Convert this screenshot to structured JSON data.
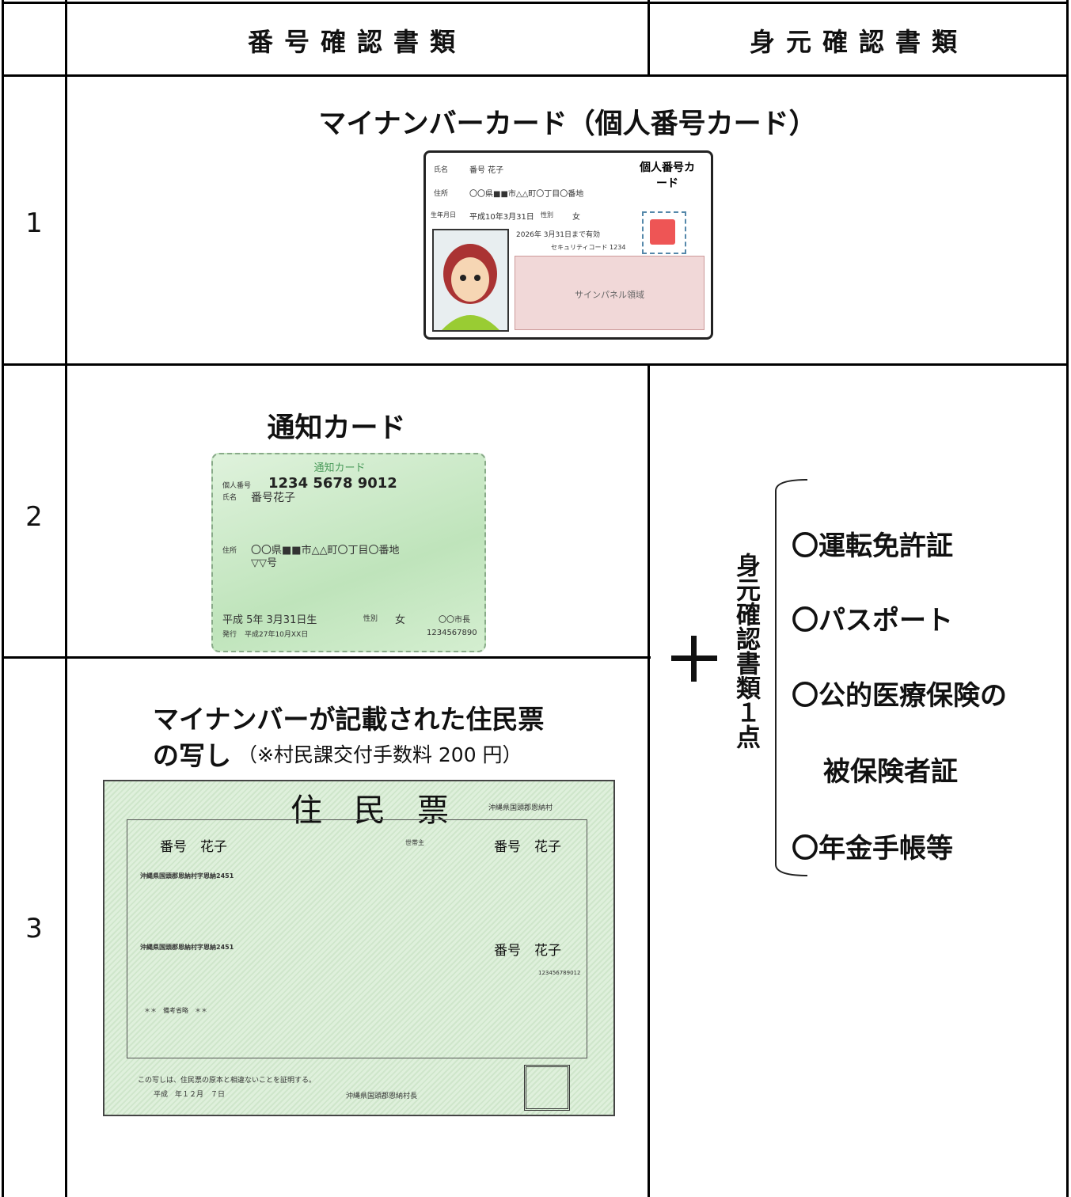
{
  "header": {
    "number_docs": "番号確認書類",
    "identity_docs": "身元確認書類"
  },
  "rows": [
    {
      "no": "1",
      "title": "マイナンバーカード（個人番号カード）",
      "card": {
        "heading": "個人番号カード",
        "name_label": "氏名",
        "name": "番号 花子",
        "address_label": "住所",
        "address": "〇〇県■■市△△町〇丁目〇番地",
        "birth_label": "生年月日",
        "birth": "平成10年3月31日",
        "sex_label": "性別",
        "sex": "女",
        "valid": "2026年 3月31日まで有効",
        "security": "セキュリティコード 1234",
        "sign_panel": "サインパネル領域"
      }
    },
    {
      "no": "2",
      "title": "通知カード",
      "card": {
        "heading": "通知カード",
        "number_label": "個人番号",
        "number": "1234 5678 9012",
        "name_label": "氏名",
        "name": "番号花子",
        "address_label": "住所",
        "address": "〇〇県■■市△△町〇丁目〇番地",
        "address2": "▽▽号",
        "birth": "平成 5年 3月31日生",
        "sex_label": "性別",
        "sex": "女",
        "issuer": "〇〇市長",
        "issued_label": "発行",
        "issued": "平成27年10月XX日",
        "serial": "1234567890"
      }
    },
    {
      "no": "3",
      "title": "マイナンバーが記載された住民票",
      "title2": "の写し",
      "note": "（※村民課交付手数料 200 円）",
      "doc": {
        "heading": "住　民　票",
        "municipality": "沖縄県国頭郡恩納村",
        "name": "番号　花子",
        "head_label": "世帯主",
        "householder": "番号　花子",
        "address": "沖縄県国頭郡恩納村字恩納2451",
        "domicile": "沖縄県国頭郡恩納村字恩納2451",
        "head_person": "番号　花子",
        "individual_number": "123456789012",
        "remarks": "＊＊　備考省略　＊＊",
        "certify": "この写しは、住民票の原本と相違ないことを証明する。",
        "date": "平成　年１２月　７日",
        "mayor": "沖縄県国頭郡恩納村長"
      }
    }
  ],
  "identity": {
    "label": "身元確認書類１点",
    "items": [
      "〇運転免許証",
      "〇パスポート",
      "〇公的医療保険の",
      "被保険者証",
      "〇年金手帳等"
    ]
  }
}
